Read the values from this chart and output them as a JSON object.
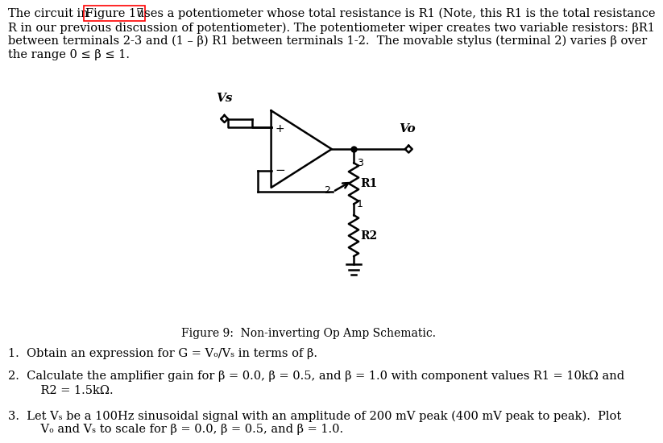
{
  "bg_color": "#ffffff",
  "text_color": "#000000",
  "figure17_box_color": "#ff0000",
  "figure_caption": "Figure 9:  Non-inverting Op Amp Schematic.",
  "top_para_prefix": "The circuit in ",
  "top_para_fig17": "Figure 17",
  "top_para_suffix": " uses a potentiometer whose total resistance is R1 (Note, this R1 is the total resistance\nR in our previous discussion of potentiometer). The potentiometer wiper creates two variable resistors: βR1\nbetween terminals 2-3 and (1 – β) R1 between terminals 1-2.  The movable stylus (terminal 2) varies β over\nthe range 0 ≤ β ≤ 1.",
  "q1": "1.  Obtain an expression for G = Vₒ/Vₛ in terms of β.",
  "q2a": "2.  Calculate the amplifier gain for β = 0.0, β = 0.5, and β = 1.0 with component values R1 = 10kΩ and",
  "q2b": "    R2 = 1.5kΩ.",
  "q3a": "3.  Let Vₛ be a 100Hz sinusoidal signal with an amplitude of 200 mV peak (400 mV peak to peak).  Plot",
  "q3b": "    Vₒ and Vₛ to scale for β = 0.0, β = 0.5, and β = 1.0.",
  "font_size_text": 10.5,
  "font_size_caption": 10.0,
  "lw": 1.8
}
